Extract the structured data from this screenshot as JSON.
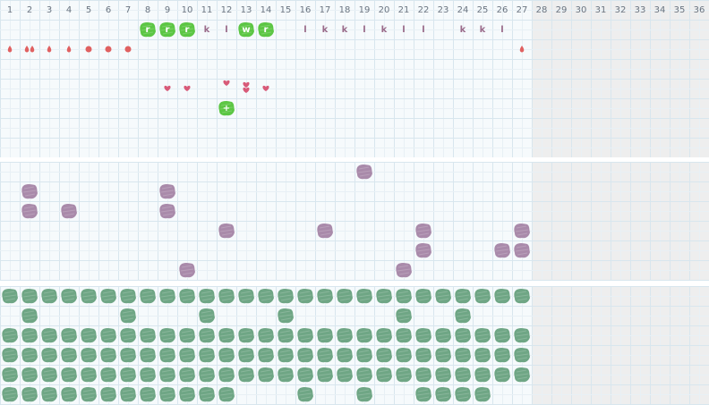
{
  "grid": {
    "columns": [
      "1",
      "2",
      "3",
      "4",
      "5",
      "6",
      "7",
      "8",
      "9",
      "10",
      "11",
      "12",
      "13",
      "14",
      "15",
      "16",
      "17",
      "18",
      "19",
      "20",
      "21",
      "22",
      "23",
      "24",
      "25",
      "26",
      "27",
      "28",
      "29",
      "30",
      "31",
      "32",
      "33",
      "34",
      "35",
      "36"
    ],
    "active_columns": 27,
    "colors": {
      "grid_line": "#d8e6ee",
      "cell_bg": "#f6fafc",
      "inactive_bg": "#eeeeee",
      "separator": "#ffffff",
      "green_bright": "#5cc644",
      "purple": "#a98aaa",
      "sea_green": "#6fa685",
      "red": "#e06060",
      "pink": "#d85a78",
      "letter": "#9a6b8a"
    }
  },
  "section1": {
    "letters_row": [
      {
        "col": 8,
        "text": "r",
        "badge": true
      },
      {
        "col": 9,
        "text": "r",
        "badge": true
      },
      {
        "col": 10,
        "text": "r",
        "badge": true
      },
      {
        "col": 11,
        "text": "k",
        "badge": false
      },
      {
        "col": 12,
        "text": "l",
        "badge": false
      },
      {
        "col": 13,
        "text": "w",
        "badge": true
      },
      {
        "col": 14,
        "text": "r",
        "badge": true
      },
      {
        "col": 16,
        "text": "l",
        "badge": false
      },
      {
        "col": 17,
        "text": "k",
        "badge": false
      },
      {
        "col": 18,
        "text": "k",
        "badge": false
      },
      {
        "col": 19,
        "text": "l",
        "badge": false
      },
      {
        "col": 20,
        "text": "k",
        "badge": false
      },
      {
        "col": 21,
        "text": "l",
        "badge": false
      },
      {
        "col": 22,
        "text": "l",
        "badge": false
      },
      {
        "col": 24,
        "text": "k",
        "badge": false
      },
      {
        "col": 25,
        "text": "k",
        "badge": false
      },
      {
        "col": 26,
        "text": "l",
        "badge": false
      }
    ],
    "markers_row": [
      {
        "col": 1,
        "icon": "drop-icon"
      },
      {
        "col": 2,
        "icon": "double-drop-icon"
      },
      {
        "col": 3,
        "icon": "drop-icon"
      },
      {
        "col": 4,
        "icon": "drop-icon"
      },
      {
        "col": 5,
        "icon": "dot-icon"
      },
      {
        "col": 6,
        "icon": "dot-icon"
      },
      {
        "col": 7,
        "icon": "dot-icon"
      },
      {
        "col": 27,
        "icon": "drop-icon"
      }
    ],
    "hearts": [
      {
        "col": 9,
        "row": 3
      },
      {
        "col": 10,
        "row": 3
      },
      {
        "col": 12,
        "row": 3,
        "raised": true
      },
      {
        "col": 13,
        "row": 3,
        "double": true
      },
      {
        "col": 14,
        "row": 3
      }
    ],
    "plus_badge": {
      "col": 12,
      "row": 4,
      "text": "+"
    }
  },
  "section2": {
    "blobs": [
      {
        "col": 19,
        "row": 0
      },
      {
        "col": 2,
        "row": 1
      },
      {
        "col": 9,
        "row": 1
      },
      {
        "col": 2,
        "row": 2
      },
      {
        "col": 4,
        "row": 2
      },
      {
        "col": 9,
        "row": 2
      },
      {
        "col": 12,
        "row": 3
      },
      {
        "col": 17,
        "row": 3
      },
      {
        "col": 22,
        "row": 3
      },
      {
        "col": 27,
        "row": 3
      },
      {
        "col": 22,
        "row": 4
      },
      {
        "col": 26,
        "row": 4
      },
      {
        "col": 27,
        "row": 4
      },
      {
        "col": 10,
        "row": 5
      },
      {
        "col": 21,
        "row": 5
      }
    ]
  },
  "section3": {
    "row_patterns": [
      "111111111111111111111111111",
      "010000100010001000001001000",
      "111111111111111111111111111",
      "111111111111111111111111111",
      "111111111111111111111111111",
      "111111111111000100100111100"
    ]
  }
}
